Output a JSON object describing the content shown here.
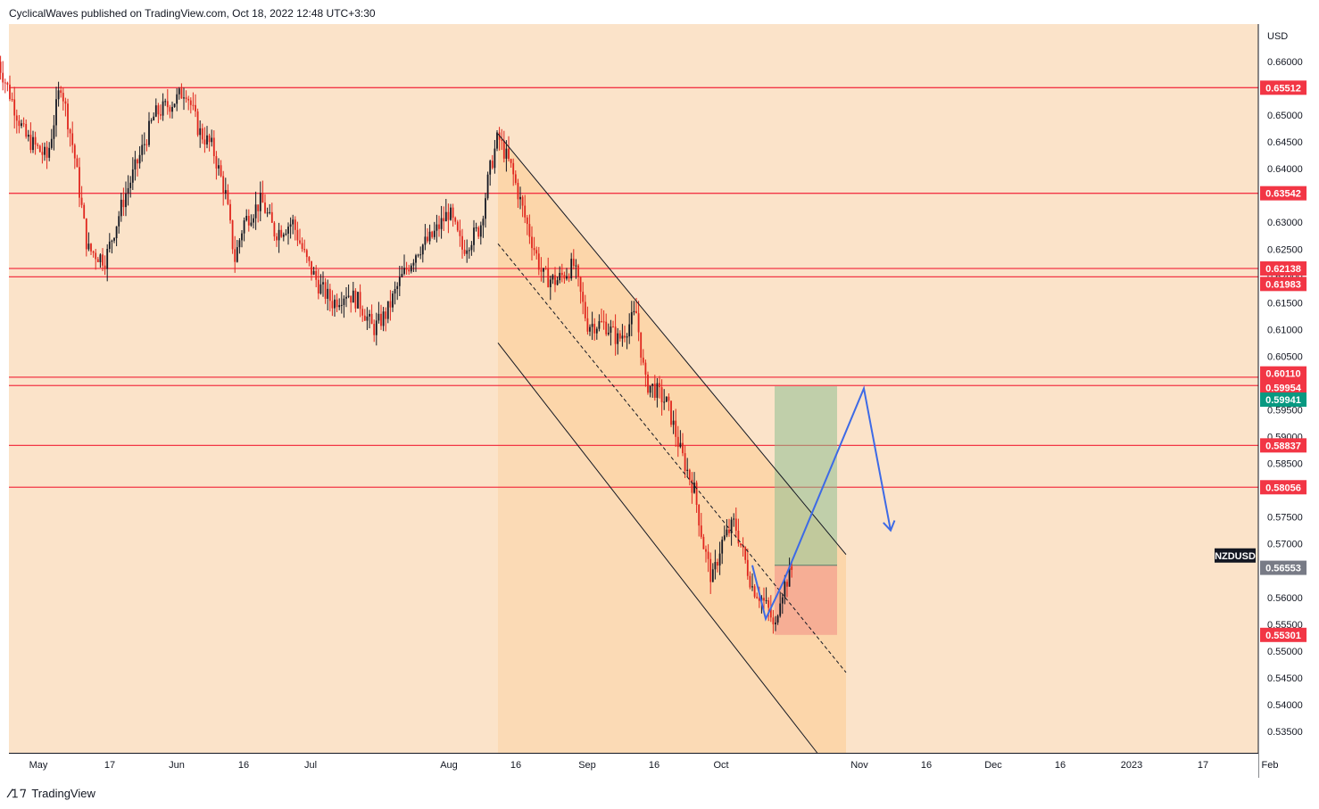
{
  "header": {
    "text": "CyclicalWaves published on TradingView.com, Oct 18, 2022 12:48 UTC+3:30"
  },
  "footer": {
    "brand": "TradingView",
    "logo_icon": "tradingview-logo-icon"
  },
  "chart_data": {
    "type": "candlestick",
    "symbol": "NZDUSD",
    "currency": "USD",
    "background": "#fbe3c9",
    "ylim": [
      0.5305,
      0.6655
    ],
    "y_ticks": [
      "0.66000",
      "0.65500",
      "0.65000",
      "0.64500",
      "0.64000",
      "0.63500",
      "0.63000",
      "0.62500",
      "0.62000",
      "0.61500",
      "0.61000",
      "0.60500",
      "0.60000",
      "0.59500",
      "0.59000",
      "0.58500",
      "0.58000",
      "0.57500",
      "0.57000",
      "0.56500",
      "0.56000",
      "0.55500",
      "0.55000",
      "0.54500",
      "0.54000",
      "0.53500"
    ],
    "x_ticks": [
      {
        "label": "May",
        "date": "2022-05-01"
      },
      {
        "label": "17",
        "date": "2022-05-17"
      },
      {
        "label": "Jun",
        "date": "2022-06-01"
      },
      {
        "label": "16",
        "date": "2022-06-16"
      },
      {
        "label": "Jul",
        "date": "2022-07-01"
      },
      {
        "label": "Aug",
        "date": "2022-08-01"
      },
      {
        "label": "16",
        "date": "2022-08-16"
      },
      {
        "label": "Sep",
        "date": "2022-09-01"
      },
      {
        "label": "16",
        "date": "2022-09-16"
      },
      {
        "label": "Oct",
        "date": "2022-10-01"
      },
      {
        "label": "Nov",
        "date": "2022-11-01"
      },
      {
        "label": "16",
        "date": "2022-11-16"
      },
      {
        "label": "Dec",
        "date": "2022-12-01"
      },
      {
        "label": "16",
        "date": "2022-12-16"
      },
      {
        "label": "2023",
        "date": "2023-01-01"
      },
      {
        "label": "17",
        "date": "2023-01-17"
      },
      {
        "label": "Feb",
        "date": "2023-02-01"
      }
    ],
    "price_series": [
      {
        "date": "2022-04-22",
        "close": 0.66
      },
      {
        "date": "2022-04-28",
        "close": 0.646
      },
      {
        "date": "2022-05-03",
        "close": 0.642
      },
      {
        "date": "2022-05-06",
        "close": 0.656
      },
      {
        "date": "2022-05-09",
        "close": 0.643
      },
      {
        "date": "2022-05-12",
        "close": 0.625
      },
      {
        "date": "2022-05-16",
        "close": 0.623
      },
      {
        "date": "2022-05-20",
        "close": 0.634
      },
      {
        "date": "2022-05-24",
        "close": 0.643
      },
      {
        "date": "2022-05-27",
        "close": 0.65
      },
      {
        "date": "2022-06-01",
        "close": 0.653
      },
      {
        "date": "2022-06-03",
        "close": 0.655
      },
      {
        "date": "2022-06-06",
        "close": 0.647
      },
      {
        "date": "2022-06-09",
        "close": 0.644
      },
      {
        "date": "2022-06-12",
        "close": 0.635
      },
      {
        "date": "2022-06-14",
        "close": 0.623
      },
      {
        "date": "2022-06-16",
        "close": 0.63
      },
      {
        "date": "2022-06-20",
        "close": 0.634
      },
      {
        "date": "2022-06-23",
        "close": 0.628
      },
      {
        "date": "2022-06-27",
        "close": 0.63
      },
      {
        "date": "2022-06-30",
        "close": 0.623
      },
      {
        "date": "2022-07-03",
        "close": 0.618
      },
      {
        "date": "2022-07-06",
        "close": 0.615
      },
      {
        "date": "2022-07-09",
        "close": 0.617
      },
      {
        "date": "2022-07-12",
        "close": 0.615
      },
      {
        "date": "2022-07-15",
        "close": 0.61
      },
      {
        "date": "2022-07-18",
        "close": 0.613
      },
      {
        "date": "2022-07-21",
        "close": 0.619
      },
      {
        "date": "2022-07-25",
        "close": 0.625
      },
      {
        "date": "2022-07-28",
        "close": 0.627
      },
      {
        "date": "2022-08-01",
        "close": 0.632
      },
      {
        "date": "2022-08-04",
        "close": 0.625
      },
      {
        "date": "2022-08-08",
        "close": 0.629
      },
      {
        "date": "2022-08-10",
        "close": 0.639
      },
      {
        "date": "2022-08-12",
        "close": 0.646
      },
      {
        "date": "2022-08-15",
        "close": 0.64
      },
      {
        "date": "2022-08-18",
        "close": 0.631
      },
      {
        "date": "2022-08-22",
        "close": 0.62
      },
      {
        "date": "2022-08-25",
        "close": 0.619
      },
      {
        "date": "2022-08-29",
        "close": 0.622
      },
      {
        "date": "2022-09-01",
        "close": 0.611
      },
      {
        "date": "2022-09-05",
        "close": 0.611
      },
      {
        "date": "2022-09-08",
        "close": 0.608
      },
      {
        "date": "2022-09-12",
        "close": 0.613
      },
      {
        "date": "2022-09-14",
        "close": 0.6
      },
      {
        "date": "2022-09-16",
        "close": 0.599
      },
      {
        "date": "2022-09-19",
        "close": 0.596
      },
      {
        "date": "2022-09-22",
        "close": 0.587
      },
      {
        "date": "2022-09-25",
        "close": 0.58
      },
      {
        "date": "2022-09-27",
        "close": 0.57
      },
      {
        "date": "2022-09-29",
        "close": 0.563
      },
      {
        "date": "2022-10-01",
        "close": 0.57
      },
      {
        "date": "2022-10-04",
        "close": 0.574
      },
      {
        "date": "2022-10-06",
        "close": 0.568
      },
      {
        "date": "2022-10-08",
        "close": 0.562
      },
      {
        "date": "2022-10-10",
        "close": 0.56
      },
      {
        "date": "2022-10-12",
        "close": 0.557
      },
      {
        "date": "2022-10-13",
        "close": 0.553
      },
      {
        "date": "2022-10-14",
        "close": 0.56
      },
      {
        "date": "2022-10-17",
        "close": 0.5655
      }
    ],
    "horizontal_levels": [
      {
        "value": 0.65512,
        "label": "0.65512",
        "color": "#f23645"
      },
      {
        "value": 0.63542,
        "label": "0.63542",
        "color": "#f23645"
      },
      {
        "value": 0.62138,
        "label": "0.62138",
        "color": "#f23645"
      },
      {
        "value": 0.61983,
        "label": "0.61983",
        "color": "#f23645"
      },
      {
        "value": 0.6011,
        "label": "0.60110",
        "color": "#f23645"
      },
      {
        "value": 0.59954,
        "label": "0.59954",
        "color": "#f23645"
      },
      {
        "value": 0.58837,
        "label": "0.58837",
        "color": "#f23645"
      },
      {
        "value": 0.58056,
        "label": "0.58056",
        "color": "#f23645"
      }
    ],
    "position_tool": {
      "entry": 0.566,
      "target": 0.59941,
      "stop": 0.55301,
      "target_label": "0.59941",
      "stop_label": "0.55301",
      "start_date": "2022-10-13",
      "end_date": "2022-10-27",
      "profit_color": "#8fbf8f",
      "loss_color": "#f4a08e"
    },
    "current_price": {
      "value": 0.56553,
      "label": "0.56553",
      "symbol_label": "NZDUSD"
    },
    "channel": {
      "upper": [
        {
          "date": "2022-08-12",
          "value": 0.6465
        },
        {
          "date": "2022-10-29",
          "value": 0.568
        }
      ],
      "middle": [
        {
          "date": "2022-08-12",
          "value": 0.626
        },
        {
          "date": "2022-10-29",
          "value": 0.546
        }
      ],
      "lower": [
        {
          "date": "2022-08-12",
          "value": 0.6075
        },
        {
          "date": "2022-10-23",
          "value": 0.5305
        }
      ],
      "fill_color": "#fcd4a4",
      "line_color": "#131722"
    },
    "projection_path": [
      {
        "date": "2022-10-08",
        "value": 0.566
      },
      {
        "date": "2022-10-11",
        "value": 0.556
      },
      {
        "date": "2022-10-15",
        "value": 0.563
      },
      {
        "date": "2022-11-02",
        "value": 0.599
      },
      {
        "date": "2022-11-08",
        "value": 0.5725
      }
    ],
    "projection_color": "#3d6ae6"
  }
}
